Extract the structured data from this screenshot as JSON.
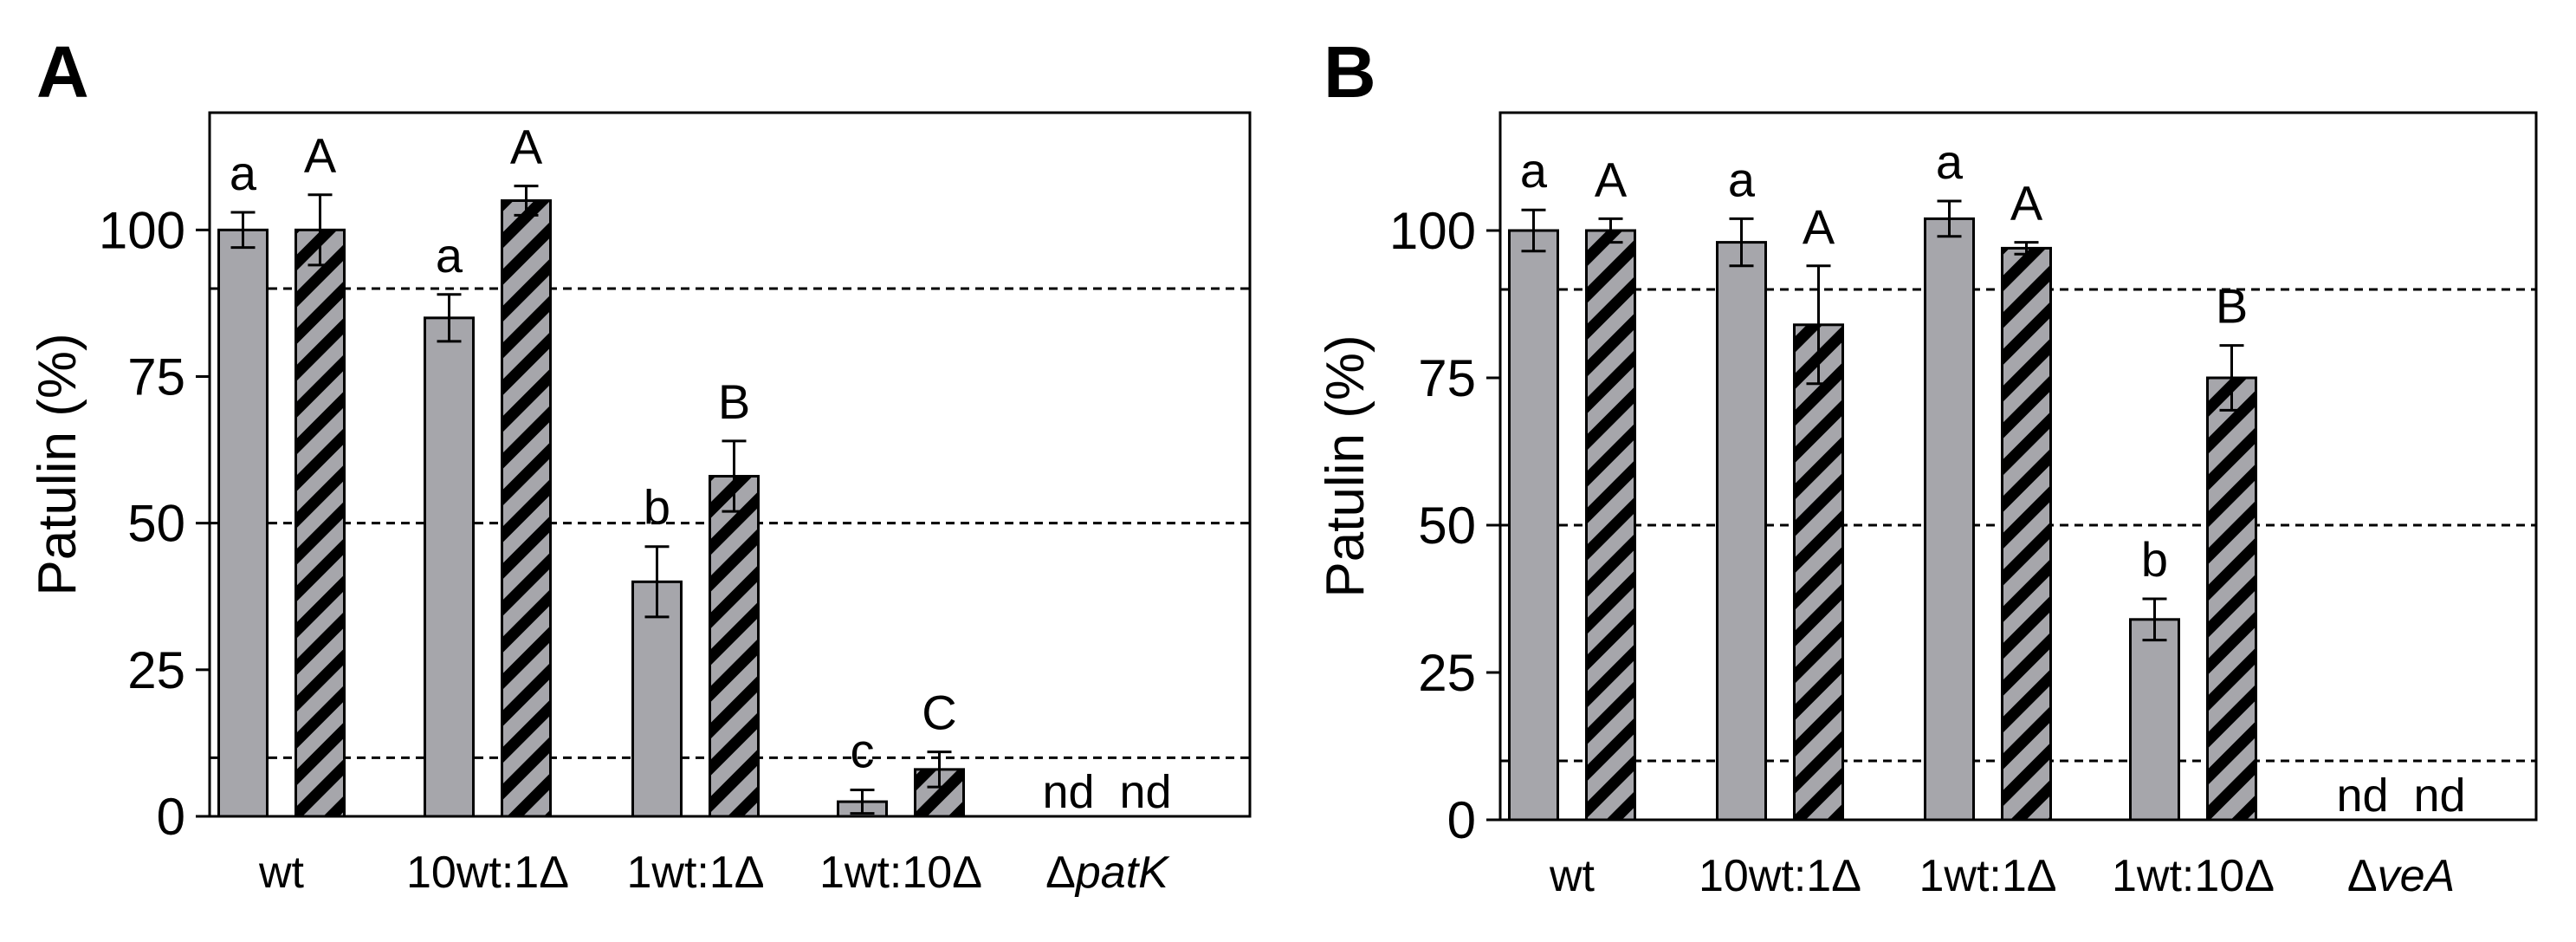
{
  "colors": {
    "bar_fill": "#a6a6ab",
    "hatch_stripe": "#000000",
    "axis": "#000000",
    "reference_line": "#000000"
  },
  "chart_data": [
    {
      "panel": "A",
      "type": "bar",
      "ylabel": "Patulin (%)",
      "ylim": [
        0,
        120
      ],
      "yticks": [
        0,
        25,
        50,
        75,
        100
      ],
      "reference_lines": [
        90,
        50,
        10
      ],
      "grid": false,
      "categories": [
        "wt",
        "10wt:1Δ",
        "1wt:1Δ",
        "1wt:10Δ",
        "ΔpatK"
      ],
      "category_labels": [
        {
          "pre": "",
          "italic": "",
          "text": "wt"
        },
        {
          "pre": "",
          "italic": "",
          "text": "10wt:1Δ"
        },
        {
          "pre": "",
          "italic": "",
          "text": "1wt:1Δ"
        },
        {
          "pre": "",
          "italic": "",
          "text": "1wt:10Δ"
        },
        {
          "pre": "Δ",
          "italic": "patK",
          "text": ""
        }
      ],
      "series": [
        {
          "name": "solid",
          "hatched": false,
          "values": [
            100,
            85,
            40,
            2.5,
            null
          ],
          "errors": [
            3,
            4,
            6,
            2,
            null
          ],
          "letters": [
            "a",
            "a",
            "b",
            "c",
            "nd"
          ]
        },
        {
          "name": "hatched",
          "hatched": true,
          "values": [
            100,
            105,
            58,
            8,
            null
          ],
          "errors": [
            6,
            2.5,
            6,
            3,
            null
          ],
          "letters": [
            "A",
            "A",
            "B",
            "C",
            "nd"
          ]
        }
      ]
    },
    {
      "panel": "B",
      "type": "bar",
      "ylabel": "Patulin (%)",
      "ylim": [
        0,
        120
      ],
      "yticks": [
        0,
        25,
        50,
        75,
        100
      ],
      "reference_lines": [
        90,
        50,
        10
      ],
      "grid": false,
      "categories": [
        "wt",
        "10wt:1Δ",
        "1wt:1Δ",
        "1wt:10Δ",
        "ΔveA"
      ],
      "category_labels": [
        {
          "pre": "",
          "italic": "",
          "text": "wt"
        },
        {
          "pre": "",
          "italic": "",
          "text": "10wt:1Δ"
        },
        {
          "pre": "",
          "italic": "",
          "text": "1wt:1Δ"
        },
        {
          "pre": "",
          "italic": "",
          "text": "1wt:10Δ"
        },
        {
          "pre": "Δ",
          "italic": "veA",
          "text": ""
        }
      ],
      "series": [
        {
          "name": "solid",
          "hatched": false,
          "values": [
            100,
            98,
            102,
            34,
            null
          ],
          "errors": [
            3.5,
            4,
            3,
            3.5,
            null
          ],
          "letters": [
            "a",
            "a",
            "a",
            "b",
            "nd"
          ]
        },
        {
          "name": "hatched",
          "hatched": true,
          "values": [
            100,
            84,
            97,
            75,
            null
          ],
          "errors": [
            2,
            10,
            1,
            5.5,
            null
          ],
          "letters": [
            "A",
            "A",
            "A",
            "B",
            "nd"
          ]
        }
      ]
    }
  ]
}
